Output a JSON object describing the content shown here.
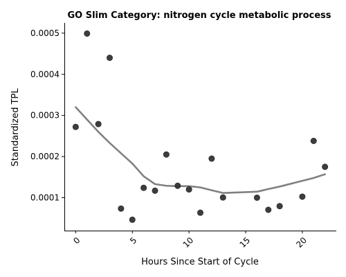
{
  "chart_data": {
    "type": "scatter",
    "title": "GO Slim Category: nitrogen cycle metabolic process",
    "xlabel": "Hours Since Start of Cycle",
    "ylabel": "Standardized TPL",
    "xlim": [
      -1,
      23
    ],
    "ylim": [
      2e-05,
      0.000525
    ],
    "xticks": [
      0,
      5,
      10,
      15,
      20
    ],
    "xtick_labels": [
      "0",
      "5",
      "10",
      "15",
      "20"
    ],
    "yticks": [
      0.0001,
      0.0002,
      0.0003,
      0.0004,
      0.0005
    ],
    "ytick_labels": [
      "0.0001",
      "0.0002",
      "0.0003",
      "0.0004",
      "0.0005"
    ],
    "grid": false,
    "point_color": "#333333",
    "line_color": "#808080",
    "points": {
      "x": [
        0,
        1,
        2,
        3,
        4,
        5,
        6,
        7,
        8,
        9,
        10,
        11,
        12,
        13,
        16,
        17,
        18,
        20,
        21,
        22
      ],
      "y": [
        0.000272,
        0.000499,
        0.000279,
        0.00044,
        7.35e-05,
        4.65e-05,
        0.000124,
        0.000117,
        0.000205,
        0.000129,
        0.00012,
        6.35e-05,
        0.000195,
        0.0001005,
        0.0001,
        7.05e-05,
        7.95e-05,
        0.0001025,
        0.000238,
        0.000175
      ]
    },
    "trend": {
      "x": [
        0,
        1,
        2,
        3,
        4,
        5,
        6,
        7,
        8,
        9,
        10,
        11,
        12,
        13,
        16,
        17,
        18,
        20,
        21,
        22
      ],
      "y": [
        0.00032,
        0.00029,
        0.00026,
        0.000233,
        0.000208,
        0.000183,
        0.000152,
        0.000133,
        0.000129,
        0.000128,
        0.000128,
        0.000125,
        0.000118,
        0.0001115,
        0.0001145,
        0.000121,
        0.000127,
        0.000141,
        0.000148,
        0.000157
      ]
    }
  }
}
